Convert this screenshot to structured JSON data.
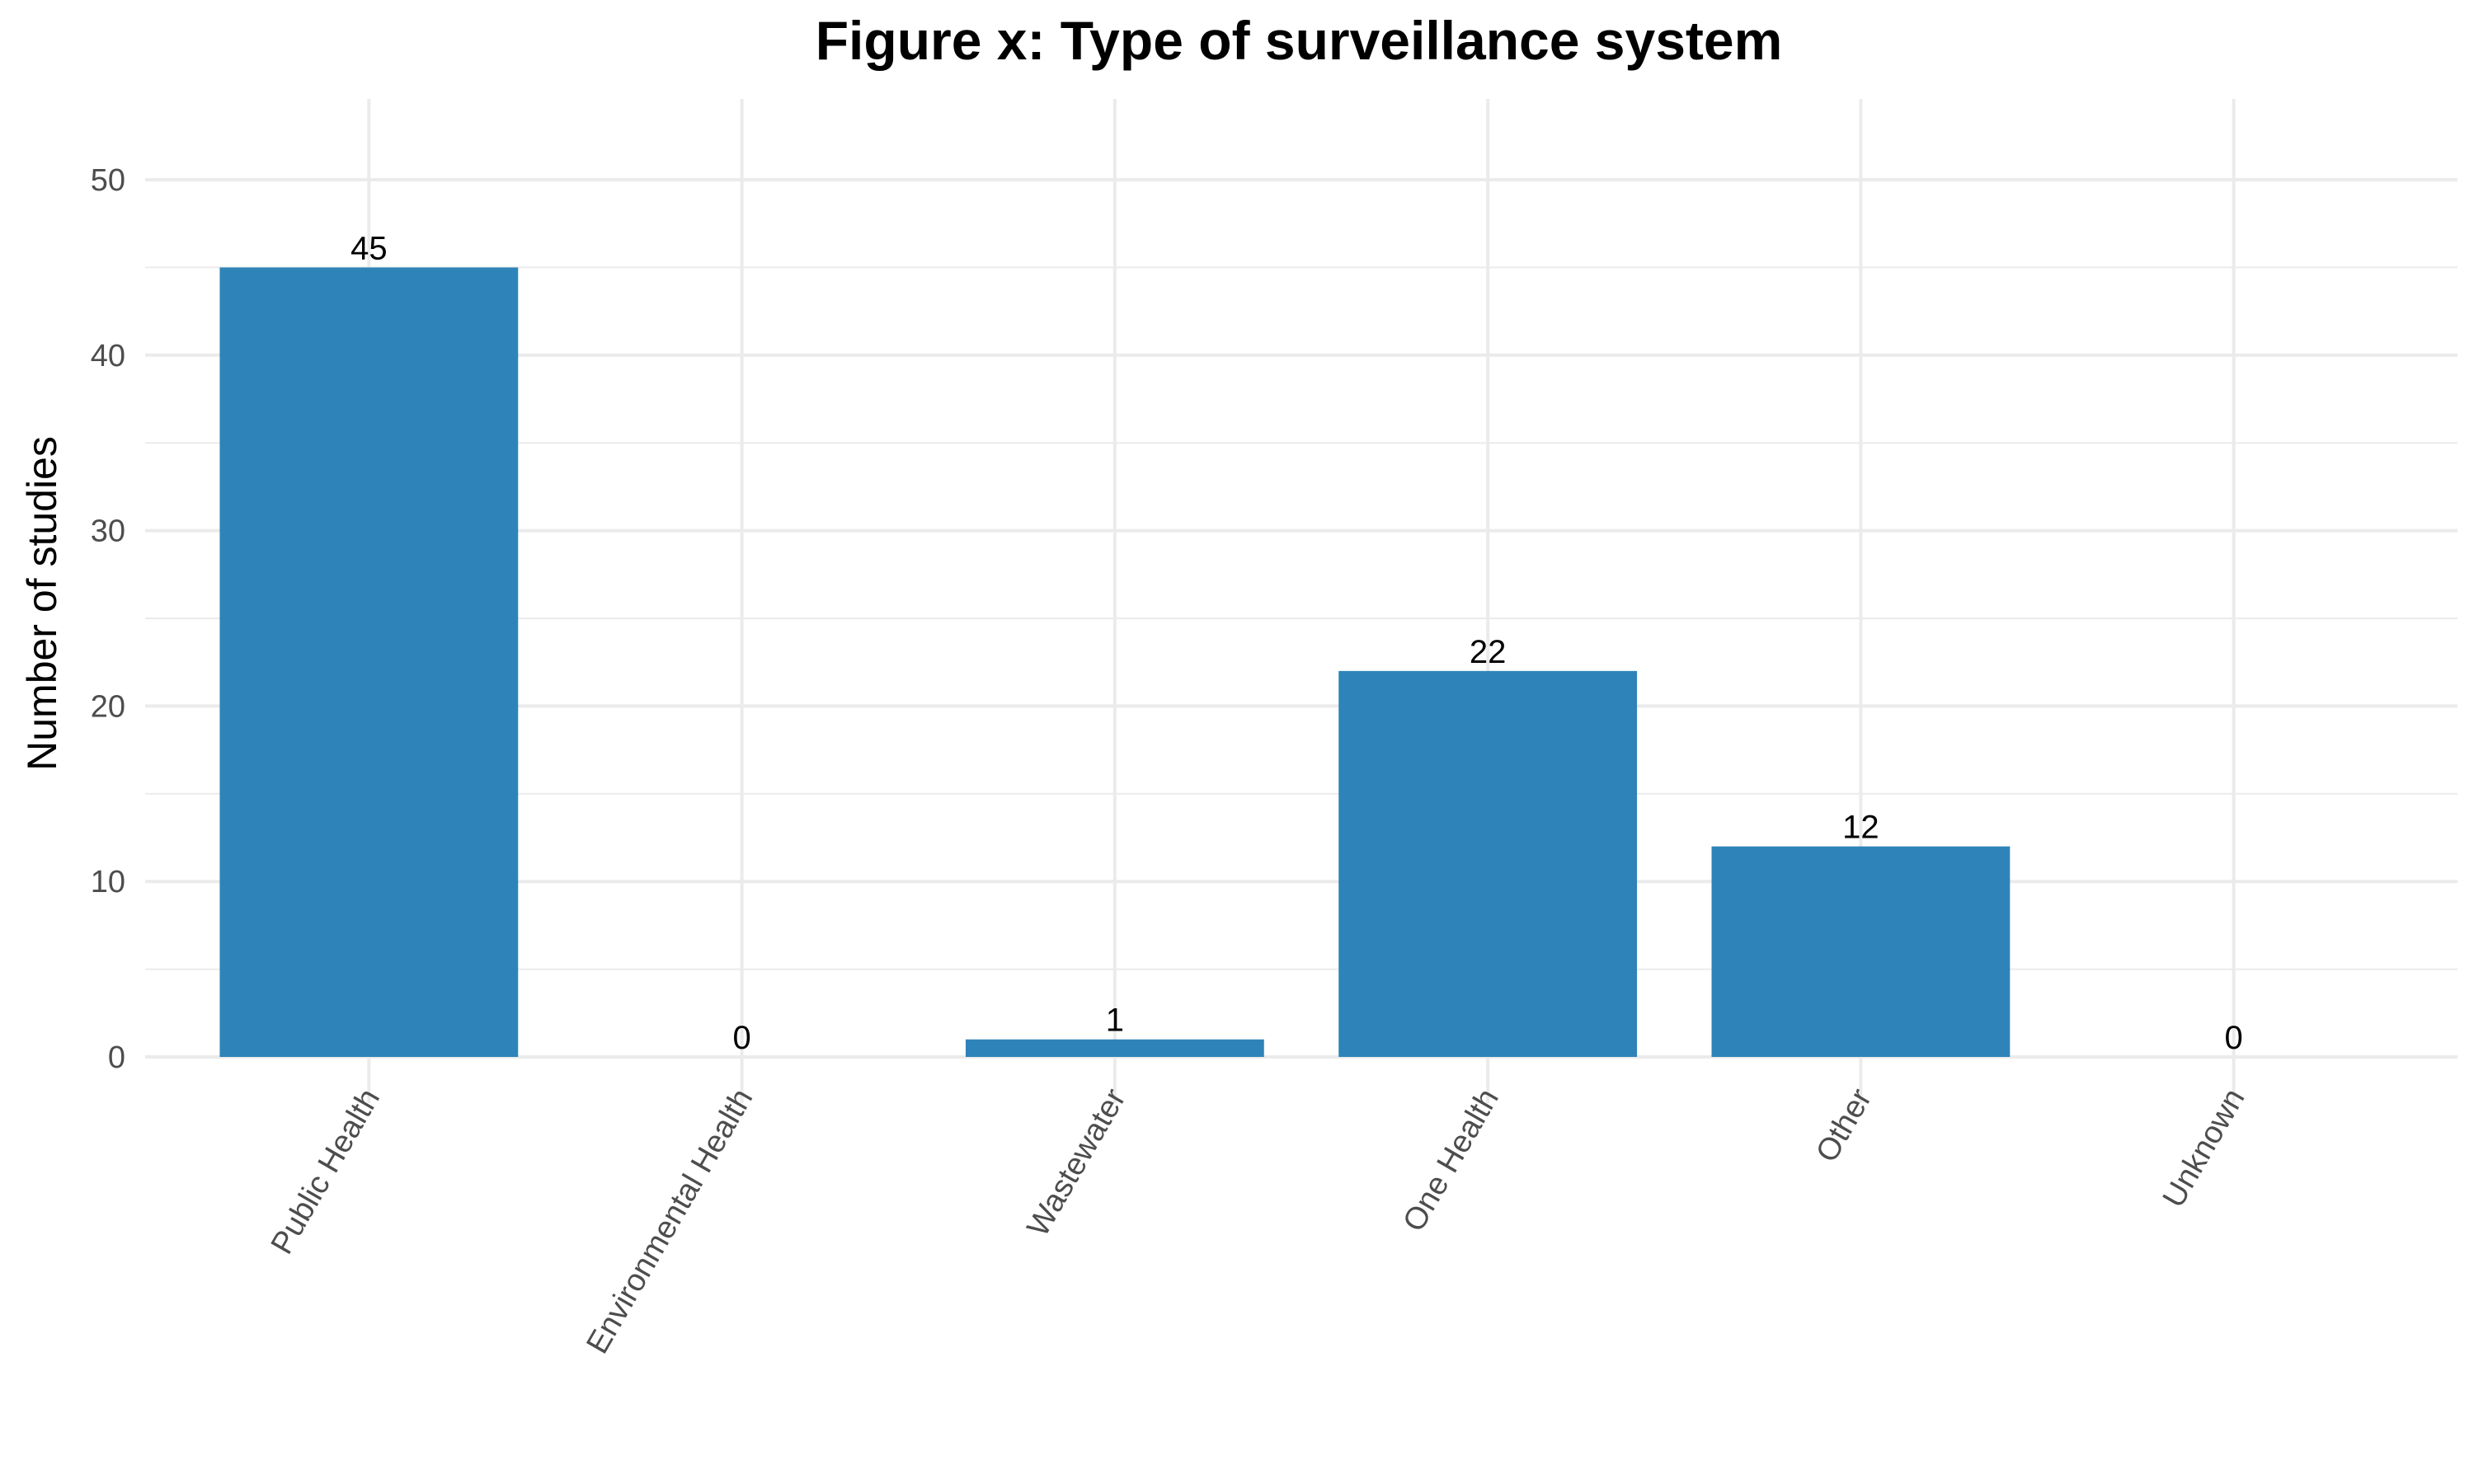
{
  "chart_data": {
    "type": "bar",
    "title": "Figure x: Type of surveillance system",
    "xlabel": "",
    "ylabel": "Number of studies",
    "categories": [
      "Public Health",
      "Environmental Health",
      "Wastewater",
      "One Health",
      "Other",
      "Unknown"
    ],
    "values": [
      45,
      0,
      1,
      22,
      12,
      0
    ],
    "data_labels": [
      "45",
      "0",
      "1",
      "22",
      "12",
      "0"
    ],
    "ylim": [
      0,
      50
    ],
    "yticks": [
      0,
      10,
      20,
      30,
      40,
      50
    ],
    "ytick_labels": [
      "0",
      "10",
      "20",
      "30",
      "40",
      "50"
    ],
    "grid": true,
    "legend": "none",
    "bar_color": "#2e84b8",
    "grid_color": "#ebebeb"
  }
}
